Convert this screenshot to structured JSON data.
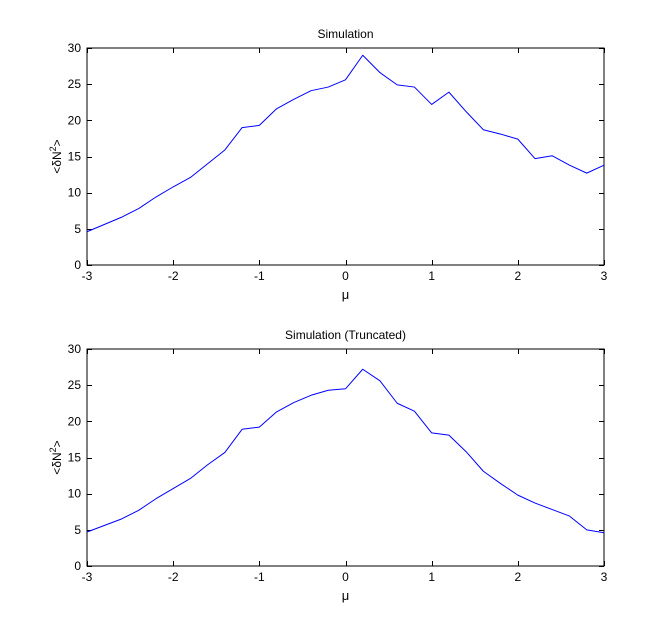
{
  "chart_data": [
    {
      "type": "line",
      "title": "Simulation",
      "xlabel": "μ",
      "ylabel_main": "<δN",
      "ylabel_sup": "2",
      "ylabel_end": ">",
      "xlim": [
        -3,
        3
      ],
      "ylim": [
        0,
        30
      ],
      "xticks": [
        "-3",
        "-2",
        "-1",
        "0",
        "1",
        "2",
        "3"
      ],
      "yticks": [
        "0",
        "5",
        "10",
        "15",
        "20",
        "25",
        "30"
      ],
      "grid": false,
      "line_color": "#0000ff",
      "series": [
        {
          "x": [
            -3.0,
            -2.8,
            -2.6,
            -2.4,
            -2.2,
            -2.0,
            -1.8,
            -1.6,
            -1.4,
            -1.2,
            -1.0,
            -0.8,
            -0.6,
            -0.4,
            -0.2,
            0.0,
            0.2,
            0.4,
            0.6,
            0.8,
            1.0,
            1.2,
            1.4,
            1.6,
            1.8,
            2.0,
            2.2,
            2.4,
            2.6,
            2.8,
            3.0
          ],
          "y": [
            4.6,
            5.6,
            6.6,
            7.8,
            9.4,
            10.8,
            12.1,
            14.0,
            15.9,
            19.0,
            19.3,
            21.6,
            22.9,
            24.1,
            24.6,
            25.6,
            29.0,
            26.6,
            24.9,
            24.6,
            22.2,
            23.9,
            21.2,
            18.7,
            18.1,
            17.4,
            14.7,
            15.1,
            13.8,
            12.7,
            13.8
          ]
        }
      ]
    },
    {
      "type": "line",
      "title": "Simulation (Truncated)",
      "xlabel": "μ",
      "ylabel_main": "<δN",
      "ylabel_sup": "2",
      "ylabel_end": ">",
      "xlim": [
        -3,
        3
      ],
      "ylim": [
        0,
        30
      ],
      "xticks": [
        "-3",
        "-2",
        "-1",
        "0",
        "1",
        "2",
        "3"
      ],
      "yticks": [
        "0",
        "5",
        "10",
        "15",
        "20",
        "25",
        "30"
      ],
      "grid": false,
      "line_color": "#0000ff",
      "series": [
        {
          "x": [
            -3.0,
            -2.8,
            -2.6,
            -2.4,
            -2.2,
            -2.0,
            -1.8,
            -1.6,
            -1.4,
            -1.2,
            -1.0,
            -0.8,
            -0.6,
            -0.4,
            -0.2,
            0.0,
            0.2,
            0.4,
            0.6,
            0.8,
            1.0,
            1.2,
            1.4,
            1.6,
            1.8,
            2.0,
            2.2,
            2.4,
            2.6,
            2.8,
            3.0
          ],
          "y": [
            4.7,
            5.6,
            6.5,
            7.7,
            9.3,
            10.7,
            12.1,
            14.0,
            15.7,
            18.9,
            19.2,
            21.3,
            22.6,
            23.6,
            24.3,
            24.5,
            27.2,
            25.6,
            22.5,
            21.4,
            18.4,
            18.1,
            15.8,
            13.1,
            11.4,
            9.8,
            8.7,
            7.8,
            6.9,
            5.0,
            4.6
          ]
        }
      ]
    }
  ]
}
